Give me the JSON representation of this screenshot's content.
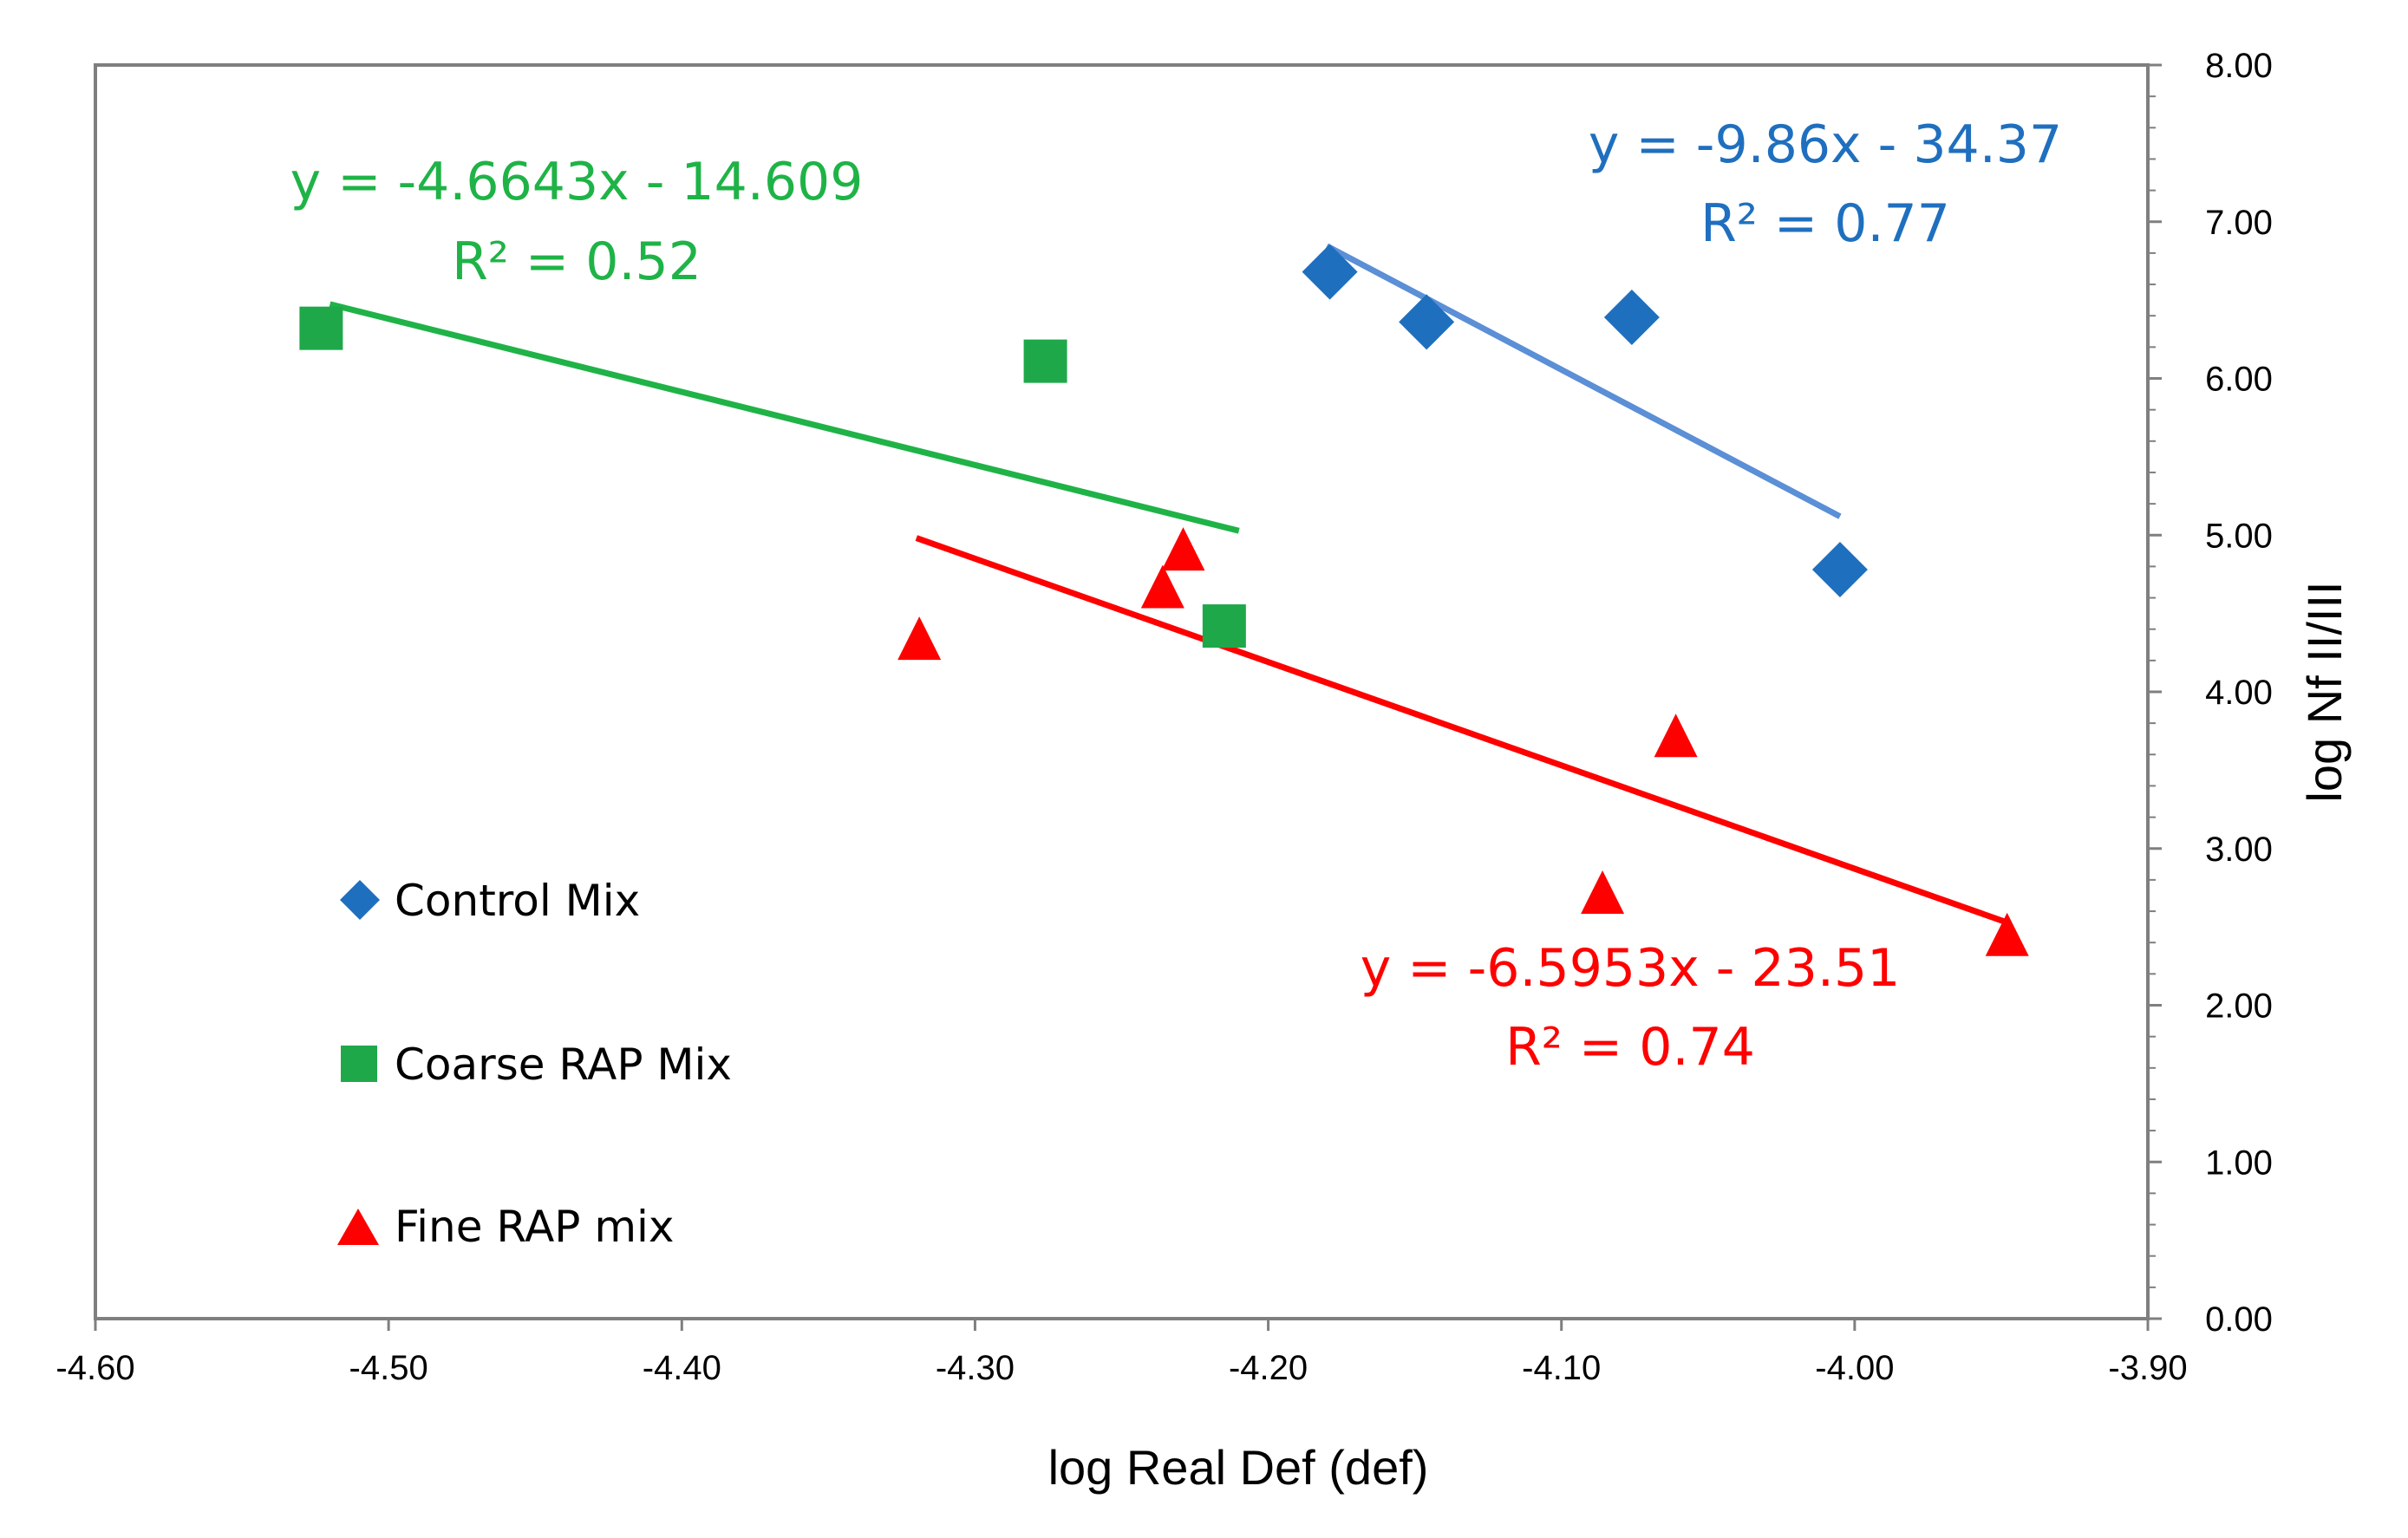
{
  "chart_data": {
    "type": "scatter",
    "title": "",
    "xlabel": "log Real Def (def)",
    "ylabel": "log Nf II/III",
    "xlim": [
      -4.6,
      -3.9
    ],
    "ylim": [
      0.0,
      8.0
    ],
    "x_ticks": [
      "-4.60",
      "-4.50",
      "-4.40",
      "-4.30",
      "-4.20",
      "-4.10",
      "-4.00",
      "-3.90"
    ],
    "y_ticks": [
      "0.00",
      "1.00",
      "2.00",
      "3.00",
      "4.00",
      "5.00",
      "6.00",
      "7.00",
      "8.00"
    ],
    "legend_position": "left",
    "series": [
      {
        "name": "Control Mix",
        "marker": "diamond",
        "color": "#1f6fbf",
        "x": [
          -4.179,
          -4.146,
          -4.076,
          -4.005
        ],
        "y": [
          6.68,
          6.36,
          6.39,
          4.78
        ],
        "trendline": {
          "x_range": [
            -4.18,
            -4.005
          ],
          "color": "#5b8fd6",
          "equation": "y = -9.86x - 34.37",
          "r2": "R² = 0.77",
          "slope": -9.86,
          "intercept": -34.37
        }
      },
      {
        "name": "Coarse RAP Mix",
        "marker": "square",
        "color": "#1fa84a",
        "x": [
          -4.523,
          -4.276,
          -4.215
        ],
        "y": [
          6.32,
          6.11,
          4.42
        ],
        "trendline": {
          "x_range": [
            -4.52,
            -4.21
          ],
          "color": "#1fb347",
          "equation": "y = -4.6643x - 14.609",
          "r2": "R² = 0.52",
          "slope": -4.6643,
          "intercept": -14.609
        }
      },
      {
        "name": "Fine RAP mix",
        "marker": "triangle",
        "color": "#ff0000",
        "x": [
          -4.319,
          -4.236,
          -4.229,
          -4.086,
          -4.061,
          -3.948
        ],
        "y": [
          4.32,
          4.65,
          4.89,
          2.7,
          3.7,
          2.43
        ],
        "trendline": {
          "x_range": [
            -4.32,
            -3.948
          ],
          "color": "#ff0000",
          "equation": "y = -6.5953x - 23.51",
          "r2": "R² = 0.74",
          "slope": -6.5953,
          "intercept": -23.51
        }
      }
    ]
  }
}
